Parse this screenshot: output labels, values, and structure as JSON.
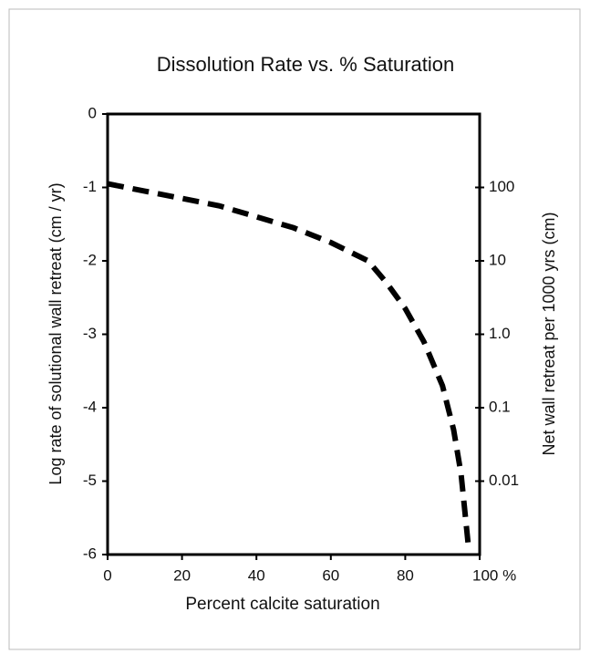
{
  "chart_data": {
    "type": "line",
    "title": "Dissolution Rate vs. % Saturation",
    "xlabel": "Percent calcite saturation",
    "ylabel": "Log rate of solutional wall retreat (cm / yr)",
    "y2label": "Net wall retreat per 1000 yrs (cm)",
    "x": [
      0,
      10,
      20,
      30,
      40,
      50,
      60,
      70,
      75,
      80,
      85,
      90,
      93,
      95,
      96,
      97
    ],
    "series": [
      {
        "color": "#000000",
        "line_style": "dashed",
        "values": [
          -0.95,
          -1.05,
          -1.15,
          -1.25,
          -1.4,
          -1.55,
          -1.75,
          -2.0,
          -2.3,
          -2.65,
          -3.1,
          -3.7,
          -4.3,
          -4.9,
          -5.4,
          -5.9
        ]
      }
    ],
    "xlim": [
      0,
      100
    ],
    "xticks": [
      0,
      20,
      40,
      60,
      80,
      {
        "value": 100,
        "label": "100 %"
      }
    ],
    "ylim": [
      -6,
      0
    ],
    "yticks": [
      0,
      -1,
      -2,
      -3,
      -4,
      -5,
      -6
    ],
    "y2lim": [
      0.001,
      1000
    ],
    "y2scale": "log",
    "y2ticks": [
      100,
      10,
      {
        "value": 1,
        "label": "1.0"
      },
      0.1,
      0.01
    ]
  }
}
